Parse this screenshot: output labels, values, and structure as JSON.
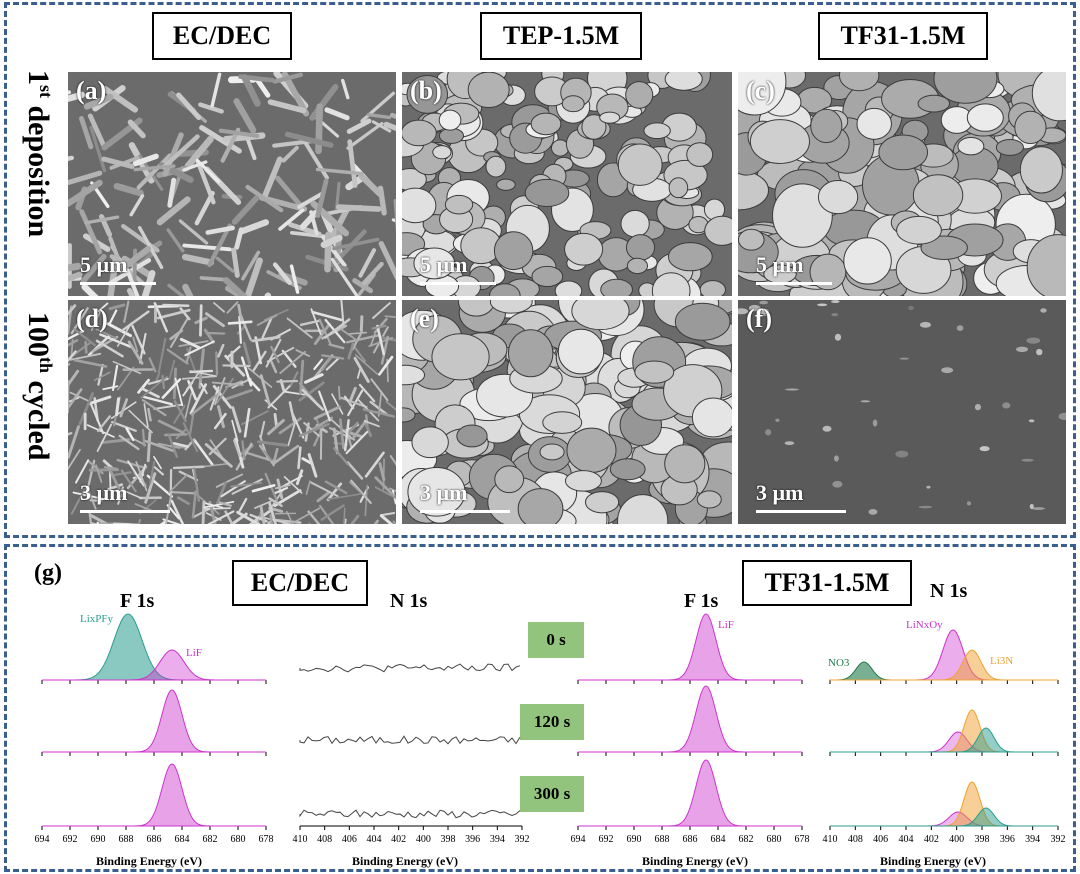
{
  "headers": {
    "col1": "EC/DEC",
    "col2": "TEP-1.5M",
    "col3": "TF31-1.5M"
  },
  "row_labels": {
    "row1_main": "1",
    "row1_sup": "st",
    "row1_rest": " deposition",
    "row2_main": "100",
    "row2_sup": "th",
    "row2_rest": " cycled"
  },
  "panels": [
    {
      "letter": "(a)",
      "scale": "5 µm"
    },
    {
      "letter": "(b)",
      "scale": "5 µm"
    },
    {
      "letter": "(c)",
      "scale": "5 µm"
    },
    {
      "letter": "(d)",
      "scale": "3 µm"
    },
    {
      "letter": "(e)",
      "scale": "3 µm"
    },
    {
      "letter": "(f)",
      "scale": "3 µm"
    }
  ],
  "xps": {
    "label": "(g)",
    "box_left": "EC/DEC",
    "box_right": "TF31-1.5M",
    "titles": [
      "F 1s",
      "N 1s",
      "F 1s",
      "N 1s"
    ],
    "times": [
      "0 s",
      "120 s",
      "300 s"
    ],
    "axis_label": "Binding Energy (eV)",
    "f1s_ticks": [
      "694",
      "692",
      "690",
      "688",
      "686",
      "684",
      "682",
      "680",
      "678"
    ],
    "n1s_ticks": [
      "410",
      "408",
      "406",
      "404",
      "402",
      "400",
      "398",
      "396",
      "394",
      "392"
    ],
    "peak_labels": {
      "lixpfy": "LixPFy",
      "lif_left": "LiF",
      "lif_right": "LiF",
      "no3": "NO3",
      "linxoy": "LiNxOy",
      "li3n": "Li3N"
    }
  },
  "colors": {
    "frame": "#3a5f8f",
    "teal": "#2a9d8f",
    "magenta": "#cc33cc",
    "orange": "#f0a030",
    "green_tag": "#93c47d"
  }
}
